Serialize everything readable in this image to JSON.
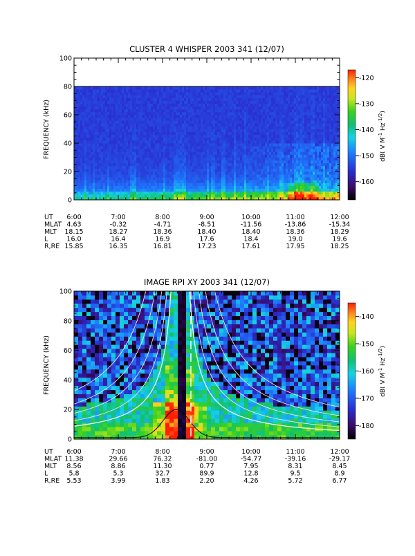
{
  "chart_data": [
    {
      "type": "heatmap",
      "title": "CLUSTER 4 WHISPER 2003 341 (12/07)",
      "ylabel": "FREQUENCY (kHz)",
      "ylim": [
        0,
        100
      ],
      "yticks": [
        "0",
        "20",
        "40",
        "60",
        "80",
        "100"
      ],
      "xticks": [
        "6:00",
        "7:00",
        "8:00",
        "9:00",
        "10:00",
        "11:00",
        "12:00"
      ],
      "colorbar": {
        "label_main": "dB( V M",
        "label_sup1": "-1",
        "label_mid": " Hz",
        "label_sup2": "-1/2",
        "label_end": ")",
        "range": [
          -167,
          -117
        ],
        "ticks": [
          "-120",
          "-130",
          "-140",
          "-150",
          "-160"
        ]
      },
      "data_top_khz": 80,
      "ephemeris": {
        "labels": [
          "UT",
          "MLAT",
          "MLT",
          "L",
          "R,RE"
        ],
        "rows": [
          [
            "4.63",
            "-0.32",
            "-4.71",
            "-8.51",
            "-11.56",
            "-13.86",
            "-15.34"
          ],
          [
            "18.15",
            "18.27",
            "18.36",
            "18.40",
            "18.40",
            "18.36",
            "18.29"
          ],
          [
            "16.0",
            "16.4",
            "16.9",
            "17.6",
            "18.4",
            "19.0",
            "19.6"
          ],
          [
            "15.85",
            "16.35",
            "16.81",
            "17.23",
            "17.61",
            "17.95",
            "18.25"
          ]
        ]
      }
    },
    {
      "type": "heatmap",
      "title": "IMAGE RPI XY 2003 341 (12/07)",
      "ylabel": "FREQUENCY (kHz)",
      "ylim": [
        0,
        100
      ],
      "yticks": [
        "0",
        "20",
        "40",
        "60",
        "80",
        "100"
      ],
      "xticks": [
        "6:00",
        "7:00",
        "8:00",
        "9:00",
        "10:00",
        "11:00",
        "12:00"
      ],
      "colorbar": {
        "label_main": "dB( V M",
        "label_sup1": "-1",
        "label_mid": " Hz",
        "label_sup2": "-1/2",
        "label_end": ")",
        "range": [
          -185,
          -135
        ],
        "ticks": [
          "-140",
          "-150",
          "-160",
          "-170",
          "-180"
        ]
      },
      "ephemeris": {
        "labels": [
          "UT",
          "MLAT",
          "MLT",
          "L",
          "R,RE"
        ],
        "rows": [
          [
            "11.38",
            "29.66",
            "76.32",
            "-81.00",
            "-54.77",
            "-39.16",
            "-29.17"
          ],
          [
            "8.56",
            "8.86",
            "11.30",
            "0.77",
            "7.95",
            "8.31",
            "8.45"
          ],
          [
            "5.8",
            "5.3",
            "32.7",
            "89.9",
            "12.8",
            "9.5",
            "8.9"
          ],
          [
            "5.53",
            "3.99",
            "1.83",
            "2.20",
            "4.26",
            "5.72",
            "6.77"
          ]
        ]
      }
    }
  ]
}
